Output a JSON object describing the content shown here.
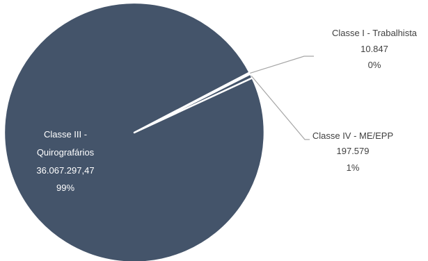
{
  "chart_data": {
    "type": "pie",
    "title": "",
    "slices": [
      {
        "name": "Classe III - Quirografários",
        "name_line1": "Classe III -",
        "name_line2": "Quirografários",
        "value_label": "36.067.297,47",
        "value": 36067297.47,
        "percent_label": "99%"
      },
      {
        "name": "Classe I - Trabalhista",
        "value_label": "10.847",
        "value": 10847,
        "percent_label": "0%"
      },
      {
        "name": "Classe IV - ME/EPP",
        "value_label": "197.579",
        "value": 197579,
        "percent_label": "1%"
      }
    ],
    "colors": {
      "slice": "#44546a",
      "border": "#ffffff",
      "leader": "#a6a6a6",
      "label_inside": "#ffffff",
      "label_outside": "#404040"
    }
  }
}
